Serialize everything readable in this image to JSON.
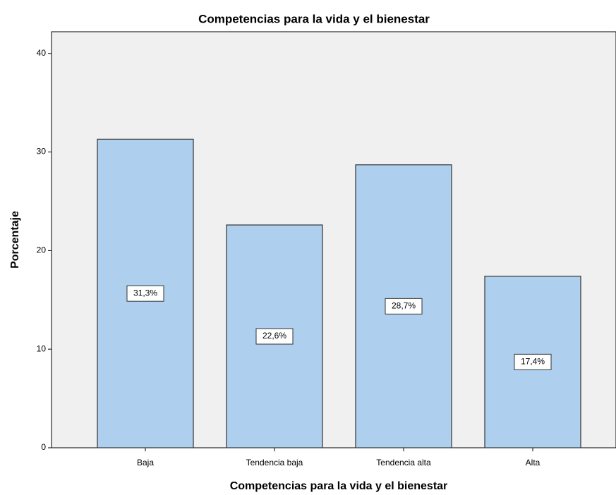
{
  "chart_data": {
    "type": "bar",
    "title": "Competencias para la vida y el bienestar",
    "x_label": "Competencias para la vida y el bienestar",
    "y_label": "Porcentaje",
    "categories": [
      "Baja",
      "Tendencia baja",
      "Tendencia alta",
      "Alta"
    ],
    "values": [
      31.3,
      22.6,
      28.7,
      17.4
    ],
    "value_labels": [
      "31,3%",
      "22,6%",
      "28,7%",
      "17,4%"
    ],
    "color": "#aecfee",
    "ylim": [
      0,
      42.2
    ],
    "yticks": [
      0,
      10,
      20,
      30,
      40
    ],
    "grid": false
  }
}
